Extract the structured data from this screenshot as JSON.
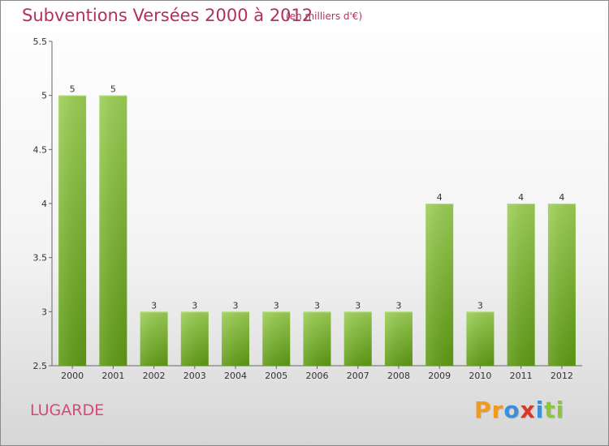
{
  "header": {
    "title": "Subventions Versées 2000 à 2012",
    "unit_note": "(en milliers d'€)"
  },
  "footer": {
    "commune": "LUGARDE",
    "logo_letters": [
      "P",
      "r",
      "o",
      "x",
      "i",
      "t",
      "i"
    ]
  },
  "colors": {
    "title": "#b4305a",
    "commune": "#d4487a",
    "bar_top": "#9ccf55",
    "bar_bottom": "#5e9a14",
    "logo": [
      "#f29a1d",
      "#f29a1d",
      "#3a8fd8",
      "#d33a2c",
      "#3a8fd8",
      "#8cc63f",
      "#8cc63f"
    ]
  },
  "chart_data": {
    "type": "bar",
    "categories": [
      "2000",
      "2001",
      "2002",
      "2003",
      "2004",
      "2005",
      "2006",
      "2007",
      "2008",
      "2009",
      "2010",
      "2011",
      "2012"
    ],
    "values": [
      5,
      5,
      3,
      3,
      3,
      3,
      3,
      3,
      3,
      4,
      3,
      4,
      4
    ],
    "data_labels": [
      "5",
      "5",
      "3",
      "3",
      "3",
      "3",
      "3",
      "3",
      "3",
      "4",
      "3",
      "4",
      "4"
    ],
    "yticks": [
      2.5,
      3,
      3.5,
      4,
      4.5,
      5,
      5.5
    ],
    "ytick_labels": [
      "2.5",
      "3",
      "3.5",
      "4",
      "4.5",
      "5",
      "5.5"
    ],
    "ylim": [
      2.5,
      5.5
    ],
    "title": "Subventions Versées 2000 à 2012",
    "xlabel": "",
    "ylabel": "",
    "grid": false,
    "legend": "none"
  }
}
